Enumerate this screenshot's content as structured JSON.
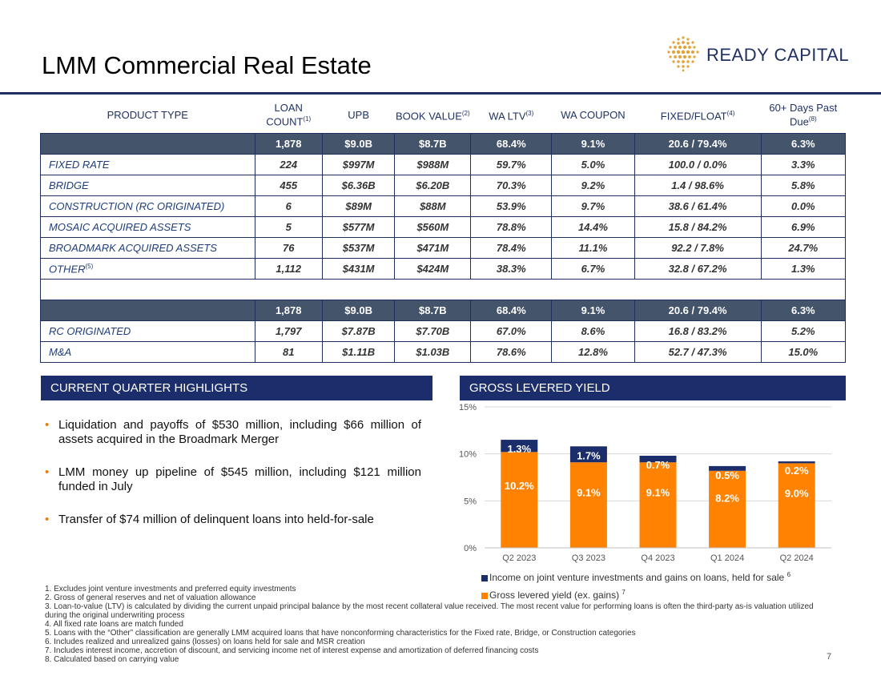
{
  "title": "LMM Commercial Real Estate",
  "logo_text": "READY CAPITAL",
  "table": {
    "headers": [
      {
        "text": "PRODUCT TYPE",
        "sup": ""
      },
      {
        "text": "LOAN COUNT",
        "sup": "(1)"
      },
      {
        "text": "UPB",
        "sup": ""
      },
      {
        "text": "BOOK VALUE",
        "sup": "(2)"
      },
      {
        "text": "WA LTV",
        "sup": "(3)"
      },
      {
        "text": "WA COUPON",
        "sup": ""
      },
      {
        "text": "FIXED/FLOAT",
        "sup": "(4)"
      },
      {
        "text": "60+ Days Past Due",
        "sup": "(8)"
      }
    ],
    "total1": [
      "",
      "1,878",
      "$9.0B",
      "$8.7B",
      "68.4%",
      "9.1%",
      "20.6 / 79.4%",
      "6.3%"
    ],
    "rows1": [
      {
        "name": "FIXED RATE",
        "sup": "",
        "vals": [
          "224",
          "$997M",
          "$988M",
          "59.7%",
          "5.0%",
          "100.0 / 0.0%",
          "3.3%"
        ]
      },
      {
        "name": "BRIDGE",
        "sup": "",
        "vals": [
          "455",
          "$6.36B",
          "$6.20B",
          "70.3%",
          "9.2%",
          "1.4 / 98.6%",
          "5.8%"
        ]
      },
      {
        "name": "CONSTRUCTION (RC ORIGINATED)",
        "sup": "",
        "vals": [
          "6",
          "$89M",
          "$88M",
          "53.9%",
          "9.7%",
          "38.6 / 61.4%",
          "0.0%"
        ]
      },
      {
        "name": "MOSAIC ACQUIRED ASSETS",
        "sup": "",
        "vals": [
          "5",
          "$577M",
          "$560M",
          "78.8%",
          "14.4%",
          "15.8 / 84.2%",
          "6.9%"
        ]
      },
      {
        "name": "BROADMARK ACQUIRED ASSETS",
        "sup": "",
        "vals": [
          "76",
          "$537M",
          "$471M",
          "78.4%",
          "11.1%",
          "92.2 / 7.8%",
          "24.7%"
        ]
      },
      {
        "name": "OTHER",
        "sup": "(5)",
        "vals": [
          "1,112",
          "$431M",
          "$424M",
          "38.3%",
          "6.7%",
          "32.8 / 67.2%",
          "1.3%"
        ]
      }
    ],
    "total2": [
      "",
      "1,878",
      "$9.0B",
      "$8.7B",
      "68.4%",
      "9.1%",
      "20.6 / 79.4%",
      "6.3%"
    ],
    "rows2": [
      {
        "name": "RC ORIGINATED",
        "sup": "",
        "vals": [
          "1,797",
          "$7.87B",
          "$7.70B",
          "67.0%",
          "8.6%",
          "16.8 / 83.2%",
          "5.2%"
        ]
      },
      {
        "name": "M&A",
        "sup": "",
        "vals": [
          "81",
          "$1.11B",
          "$1.03B",
          "78.6%",
          "12.8%",
          "52.7 / 47.3%",
          "15.0%"
        ]
      }
    ]
  },
  "highlights": {
    "heading": "CURRENT QUARTER HIGHLIGHTS",
    "bullets": [
      "Liquidation and payoffs of $530 million, including $66 million of assets acquired in the Broadmark Merger",
      "LMM money up pipeline of $545 million, including $121 million funded in July",
      "Transfer of $74 million of delinquent loans into held-for-sale"
    ]
  },
  "yield_heading": "GROSS LEVERED YIELD",
  "chart_data": {
    "type": "bar",
    "stacked": true,
    "categories": [
      "Q2 2023",
      "Q3 2023",
      "Q4 2023",
      "Q1 2024",
      "Q2 2024"
    ],
    "series": [
      {
        "name": "Gross levered yield (ex. gains)",
        "legend_sup": "7",
        "color": "#ff8200",
        "values": [
          10.2,
          9.1,
          9.1,
          8.2,
          9.0
        ],
        "labels": [
          "10.2%",
          "9.1%",
          "9.1%",
          "8.2%",
          "9.0%"
        ]
      },
      {
        "name": "Income on joint venture investments and gains on loans, held for sale",
        "legend_sup": "6",
        "color": "#1b2d6b",
        "values": [
          1.3,
          1.7,
          0.7,
          0.5,
          0.2
        ],
        "labels": [
          "1.3%",
          "1.7%",
          "0.7%",
          "0.5%",
          "0.2%"
        ]
      }
    ],
    "yticks": [
      "0%",
      "5%",
      "10%",
      "15%"
    ],
    "ylim": [
      0,
      15
    ],
    "grid": true
  },
  "footnotes": [
    "1. Excludes joint venture investments and preferred equity investments",
    "2. Gross of general reserves and net of valuation allowance",
    "3. Loan-to-value (LTV) is calculated by dividing the current unpaid principal balance by the most recent collateral value received. The most recent value for performing loans is often the third-party as-is valuation utilized during the original underwriting process",
    "4. All fixed rate loans are match funded",
    "5. Loans with the “Other” classification are generally LMM acquired loans that have nonconforming characteristics for the Fixed rate, Bridge, or Construction categories",
    "6. Includes realized and unrealized gains (losses) on loans held for sale and MSR creation",
    "7. Includes interest income, accretion of discount, and servicing income net of interest expense and amortization of deferred financing costs",
    "8. Calculated based on carrying value"
  ],
  "page_number": "7"
}
